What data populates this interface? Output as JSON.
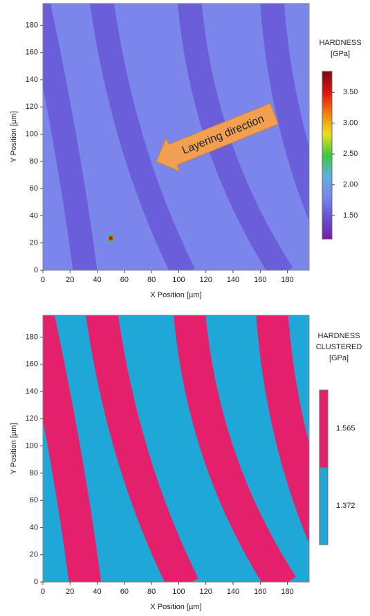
{
  "chart_data": [
    {
      "type": "heatmap",
      "xlabel": "X Position [µm]",
      "ylabel": "Y Position [µm]",
      "xlim": [
        0,
        196
      ],
      "ylim": [
        0,
        196
      ],
      "xticks": [
        0,
        20,
        40,
        60,
        80,
        100,
        120,
        140,
        160,
        180
      ],
      "yticks": [
        0,
        20,
        40,
        60,
        80,
        100,
        120,
        140,
        160,
        180
      ],
      "annotation": "Layering direction",
      "colorbar": {
        "title": [
          "HARDNESS",
          "[GPa]"
        ],
        "lim": [
          1.12,
          3.84
        ],
        "ticks": [
          {
            "value": 1.5,
            "label": "1.50"
          },
          {
            "value": 2.0,
            "label": "2.00"
          },
          {
            "value": 2.5,
            "label": "2.50"
          },
          {
            "value": 3.0,
            "label": "3.00"
          },
          {
            "value": 3.5,
            "label": "3.50"
          }
        ],
        "colors": [
          "#7a1aa8",
          "#6650d4",
          "#7a86ea",
          "#5fb0e0",
          "#3cc83c",
          "#e8e020",
          "#f08010",
          "#e01010",
          "#7a0a10"
        ]
      }
    },
    {
      "type": "clustered_heatmap",
      "xlabel": "X Position [µm]",
      "ylabel": "Y Position [µm]",
      "xlim": [
        0,
        196
      ],
      "ylim": [
        0,
        196
      ],
      "xticks": [
        0,
        20,
        40,
        60,
        80,
        100,
        120,
        140,
        160,
        180
      ],
      "yticks": [
        0,
        20,
        40,
        60,
        80,
        100,
        120,
        140,
        160,
        180
      ],
      "colorbar": {
        "title": [
          "HARDNESS",
          "CLUSTERED",
          "[GPa]"
        ],
        "categories": [
          1.372,
          1.565
        ],
        "colors": [
          "#1fa7d8",
          "#e5206b"
        ]
      }
    }
  ]
}
